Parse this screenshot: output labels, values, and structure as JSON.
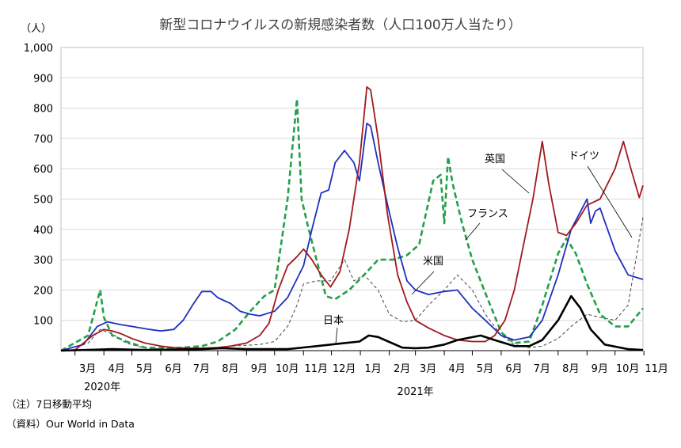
{
  "chart_data": {
    "type": "line",
    "title": "新型コロナウイルスの新規感染者数（人口100万人当たり）",
    "ylabel": "（人）",
    "ylim": [
      0,
      1000
    ],
    "yticks": [
      "1,000",
      "900",
      "800",
      "700",
      "600",
      "500",
      "400",
      "300",
      "200",
      "100"
    ],
    "xticks": [
      "3月",
      "4月",
      "5月",
      "6月",
      "7月",
      "8月",
      "9月",
      "10月",
      "11月",
      "12月",
      "1月",
      "2月",
      "3月",
      "4月",
      "5月",
      "6月",
      "7月",
      "8月",
      "9月",
      "10月",
      "11月"
    ],
    "year_labels": [
      "2020年",
      "2021年"
    ],
    "x_range": [
      "2020-02-15",
      "2021-10-31"
    ],
    "grid": "horizontal",
    "series": [
      {
        "name": "英国",
        "color": "#a0191e",
        "dash": "solid",
        "points": [
          [
            "2020-02-15",
            0
          ],
          [
            "2020-03-01",
            2
          ],
          [
            "2020-03-20",
            50
          ],
          [
            "2020-04-01",
            70
          ],
          [
            "2020-04-10",
            65
          ],
          [
            "2020-04-20",
            55
          ],
          [
            "2020-05-01",
            40
          ],
          [
            "2020-05-15",
            25
          ],
          [
            "2020-06-01",
            15
          ],
          [
            "2020-06-15",
            10
          ],
          [
            "2020-07-01",
            8
          ],
          [
            "2020-07-15",
            8
          ],
          [
            "2020-08-01",
            10
          ],
          [
            "2020-08-15",
            15
          ],
          [
            "2020-09-01",
            25
          ],
          [
            "2020-09-15",
            50
          ],
          [
            "2020-09-25",
            90
          ],
          [
            "2020-10-05",
            200
          ],
          [
            "2020-10-15",
            280
          ],
          [
            "2020-10-25",
            310
          ],
          [
            "2020-11-01",
            335
          ],
          [
            "2020-11-10",
            300
          ],
          [
            "2020-11-20",
            250
          ],
          [
            "2020-11-30",
            210
          ],
          [
            "2020-12-10",
            260
          ],
          [
            "2020-12-20",
            400
          ],
          [
            "2020-12-31",
            620
          ],
          [
            "2021-01-08",
            870
          ],
          [
            "2021-01-12",
            860
          ],
          [
            "2021-01-20",
            700
          ],
          [
            "2021-01-30",
            450
          ],
          [
            "2021-02-10",
            250
          ],
          [
            "2021-02-20",
            160
          ],
          [
            "2021-03-01",
            100
          ],
          [
            "2021-03-15",
            75
          ],
          [
            "2021-04-01",
            50
          ],
          [
            "2021-04-15",
            35
          ],
          [
            "2021-05-01",
            30
          ],
          [
            "2021-05-15",
            30
          ],
          [
            "2021-05-25",
            50
          ],
          [
            "2021-06-05",
            100
          ],
          [
            "2021-06-15",
            200
          ],
          [
            "2021-06-25",
            350
          ],
          [
            "2021-07-05",
            500
          ],
          [
            "2021-07-15",
            690
          ],
          [
            "2021-07-22",
            550
          ],
          [
            "2021-08-01",
            390
          ],
          [
            "2021-08-10",
            380
          ],
          [
            "2021-08-20",
            420
          ],
          [
            "2021-09-01",
            480
          ],
          [
            "2021-09-15",
            500
          ],
          [
            "2021-10-01",
            600
          ],
          [
            "2021-10-10",
            690
          ],
          [
            "2021-10-18",
            600
          ],
          [
            "2021-10-27",
            505
          ],
          [
            "2021-10-31",
            545
          ]
        ]
      },
      {
        "name": "米国",
        "color": "#1f2fbf",
        "dash": "solid",
        "points": [
          [
            "2020-02-15",
            0
          ],
          [
            "2020-03-10",
            20
          ],
          [
            "2020-03-25",
            80
          ],
          [
            "2020-04-05",
            95
          ],
          [
            "2020-04-20",
            85
          ],
          [
            "2020-05-01",
            80
          ],
          [
            "2020-05-20",
            70
          ],
          [
            "2020-06-01",
            65
          ],
          [
            "2020-06-15",
            70
          ],
          [
            "2020-06-25",
            100
          ],
          [
            "2020-07-05",
            150
          ],
          [
            "2020-07-15",
            195
          ],
          [
            "2020-07-25",
            195
          ],
          [
            "2020-08-01",
            175
          ],
          [
            "2020-08-15",
            155
          ],
          [
            "2020-08-25",
            130
          ],
          [
            "2020-09-05",
            120
          ],
          [
            "2020-09-15",
            115
          ],
          [
            "2020-10-01",
            130
          ],
          [
            "2020-10-15",
            175
          ],
          [
            "2020-11-01",
            280
          ],
          [
            "2020-11-10",
            400
          ],
          [
            "2020-11-20",
            520
          ],
          [
            "2020-11-28",
            530
          ],
          [
            "2020-12-05",
            620
          ],
          [
            "2020-12-15",
            660
          ],
          [
            "2020-12-25",
            620
          ],
          [
            "2020-12-31",
            560
          ],
          [
            "2021-01-08",
            750
          ],
          [
            "2021-01-12",
            740
          ],
          [
            "2021-01-20",
            620
          ],
          [
            "2021-01-31",
            470
          ],
          [
            "2021-02-10",
            340
          ],
          [
            "2021-02-20",
            230
          ],
          [
            "2021-03-01",
            200
          ],
          [
            "2021-03-15",
            185
          ],
          [
            "2021-04-01",
            195
          ],
          [
            "2021-04-15",
            200
          ],
          [
            "2021-05-01",
            140
          ],
          [
            "2021-05-15",
            100
          ],
          [
            "2021-06-01",
            50
          ],
          [
            "2021-06-15",
            35
          ],
          [
            "2021-07-01",
            45
          ],
          [
            "2021-07-15",
            100
          ],
          [
            "2021-08-01",
            250
          ],
          [
            "2021-08-15",
            400
          ],
          [
            "2021-09-01",
            500
          ],
          [
            "2021-09-05",
            420
          ],
          [
            "2021-09-10",
            460
          ],
          [
            "2021-09-15",
            470
          ],
          [
            "2021-10-01",
            330
          ],
          [
            "2021-10-15",
            250
          ],
          [
            "2021-10-31",
            235
          ]
        ]
      },
      {
        "name": "フランス",
        "color": "#22a04a",
        "dash": "dashed",
        "points": [
          [
            "2020-02-15",
            0
          ],
          [
            "2020-03-15",
            50
          ],
          [
            "2020-03-28",
            200
          ],
          [
            "2020-04-01",
            110
          ],
          [
            "2020-04-10",
            50
          ],
          [
            "2020-04-25",
            30
          ],
          [
            "2020-05-15",
            10
          ],
          [
            "2020-06-15",
            8
          ],
          [
            "2020-07-15",
            15
          ],
          [
            "2020-08-01",
            30
          ],
          [
            "2020-08-20",
            70
          ],
          [
            "2020-09-05",
            130
          ],
          [
            "2020-09-20",
            180
          ],
          [
            "2020-10-01",
            200
          ],
          [
            "2020-10-15",
            500
          ],
          [
            "2020-10-25",
            830
          ],
          [
            "2020-10-30",
            500
          ],
          [
            "2020-11-05",
            420
          ],
          [
            "2020-11-15",
            300
          ],
          [
            "2020-11-25",
            180
          ],
          [
            "2020-12-05",
            170
          ],
          [
            "2020-12-20",
            200
          ],
          [
            "2021-01-05",
            250
          ],
          [
            "2021-01-20",
            300
          ],
          [
            "2021-02-05",
            300
          ],
          [
            "2021-02-20",
            315
          ],
          [
            "2021-03-05",
            350
          ],
          [
            "2021-03-20",
            560
          ],
          [
            "2021-03-28",
            580
          ],
          [
            "2021-04-01",
            420
          ],
          [
            "2021-04-05",
            640
          ],
          [
            "2021-04-10",
            550
          ],
          [
            "2021-04-20",
            420
          ],
          [
            "2021-05-01",
            300
          ],
          [
            "2021-05-15",
            190
          ],
          [
            "2021-06-01",
            60
          ],
          [
            "2021-06-15",
            25
          ],
          [
            "2021-07-01",
            30
          ],
          [
            "2021-07-15",
            150
          ],
          [
            "2021-08-01",
            320
          ],
          [
            "2021-08-10",
            370
          ],
          [
            "2021-08-20",
            320
          ],
          [
            "2021-09-01",
            220
          ],
          [
            "2021-09-15",
            120
          ],
          [
            "2021-10-01",
            80
          ],
          [
            "2021-10-15",
            80
          ],
          [
            "2021-10-31",
            140
          ]
        ]
      },
      {
        "name": "ドイツ",
        "color": "#444444",
        "dash": "dashed-thin",
        "points": [
          [
            "2020-02-15",
            0
          ],
          [
            "2020-03-15",
            25
          ],
          [
            "2020-03-28",
            70
          ],
          [
            "2020-04-10",
            55
          ],
          [
            "2020-04-25",
            25
          ],
          [
            "2020-05-15",
            8
          ],
          [
            "2020-06-15",
            5
          ],
          [
            "2020-07-15",
            5
          ],
          [
            "2020-08-15",
            15
          ],
          [
            "2020-09-15",
            20
          ],
          [
            "2020-10-01",
            30
          ],
          [
            "2020-10-15",
            80
          ],
          [
            "2020-10-25",
            150
          ],
          [
            "2020-11-01",
            220
          ],
          [
            "2020-11-15",
            230
          ],
          [
            "2020-11-30",
            230
          ],
          [
            "2020-12-15",
            300
          ],
          [
            "2020-12-25",
            230
          ],
          [
            "2021-01-05",
            250
          ],
          [
            "2021-01-20",
            200
          ],
          [
            "2021-02-01",
            120
          ],
          [
            "2021-02-15",
            95
          ],
          [
            "2021-03-01",
            100
          ],
          [
            "2021-03-15",
            150
          ],
          [
            "2021-04-01",
            200
          ],
          [
            "2021-04-15",
            250
          ],
          [
            "2021-05-01",
            200
          ],
          [
            "2021-05-15",
            120
          ],
          [
            "2021-06-01",
            50
          ],
          [
            "2021-06-15",
            20
          ],
          [
            "2021-07-01",
            10
          ],
          [
            "2021-07-15",
            15
          ],
          [
            "2021-08-01",
            40
          ],
          [
            "2021-08-15",
            80
          ],
          [
            "2021-09-01",
            120
          ],
          [
            "2021-09-15",
            110
          ],
          [
            "2021-10-01",
            100
          ],
          [
            "2021-10-15",
            150
          ],
          [
            "2021-10-31",
            440
          ]
        ]
      },
      {
        "name": "日本",
        "color": "#000000",
        "dash": "solid-thick",
        "points": [
          [
            "2020-02-15",
            0
          ],
          [
            "2020-04-10",
            5
          ],
          [
            "2020-05-15",
            2
          ],
          [
            "2020-07-15",
            5
          ],
          [
            "2020-08-05",
            8
          ],
          [
            "2020-09-01",
            5
          ],
          [
            "2020-10-15",
            5
          ],
          [
            "2020-11-15",
            15
          ],
          [
            "2020-12-15",
            25
          ],
          [
            "2020-12-31",
            30
          ],
          [
            "2021-01-10",
            50
          ],
          [
            "2021-01-20",
            45
          ],
          [
            "2021-01-31",
            30
          ],
          [
            "2021-02-15",
            10
          ],
          [
            "2021-03-01",
            8
          ],
          [
            "2021-03-15",
            10
          ],
          [
            "2021-04-01",
            20
          ],
          [
            "2021-04-15",
            35
          ],
          [
            "2021-05-10",
            50
          ],
          [
            "2021-05-25",
            35
          ],
          [
            "2021-06-15",
            15
          ],
          [
            "2021-07-01",
            15
          ],
          [
            "2021-07-15",
            35
          ],
          [
            "2021-08-01",
            100
          ],
          [
            "2021-08-15",
            180
          ],
          [
            "2021-08-25",
            140
          ],
          [
            "2021-09-05",
            70
          ],
          [
            "2021-09-20",
            20
          ],
          [
            "2021-10-15",
            5
          ],
          [
            "2021-10-31",
            2
          ]
        ]
      }
    ],
    "labels": [
      {
        "text": "英国",
        "series": "英国"
      },
      {
        "text": "ドイツ",
        "series": "ドイツ"
      },
      {
        "text": "フランス",
        "series": "フランス"
      },
      {
        "text": "米国",
        "series": "米国"
      },
      {
        "text": "日本",
        "series": "日本"
      }
    ]
  },
  "notes": {
    "note1": "（注）7日移動平均",
    "note2": "（資料）Our World in Data"
  }
}
